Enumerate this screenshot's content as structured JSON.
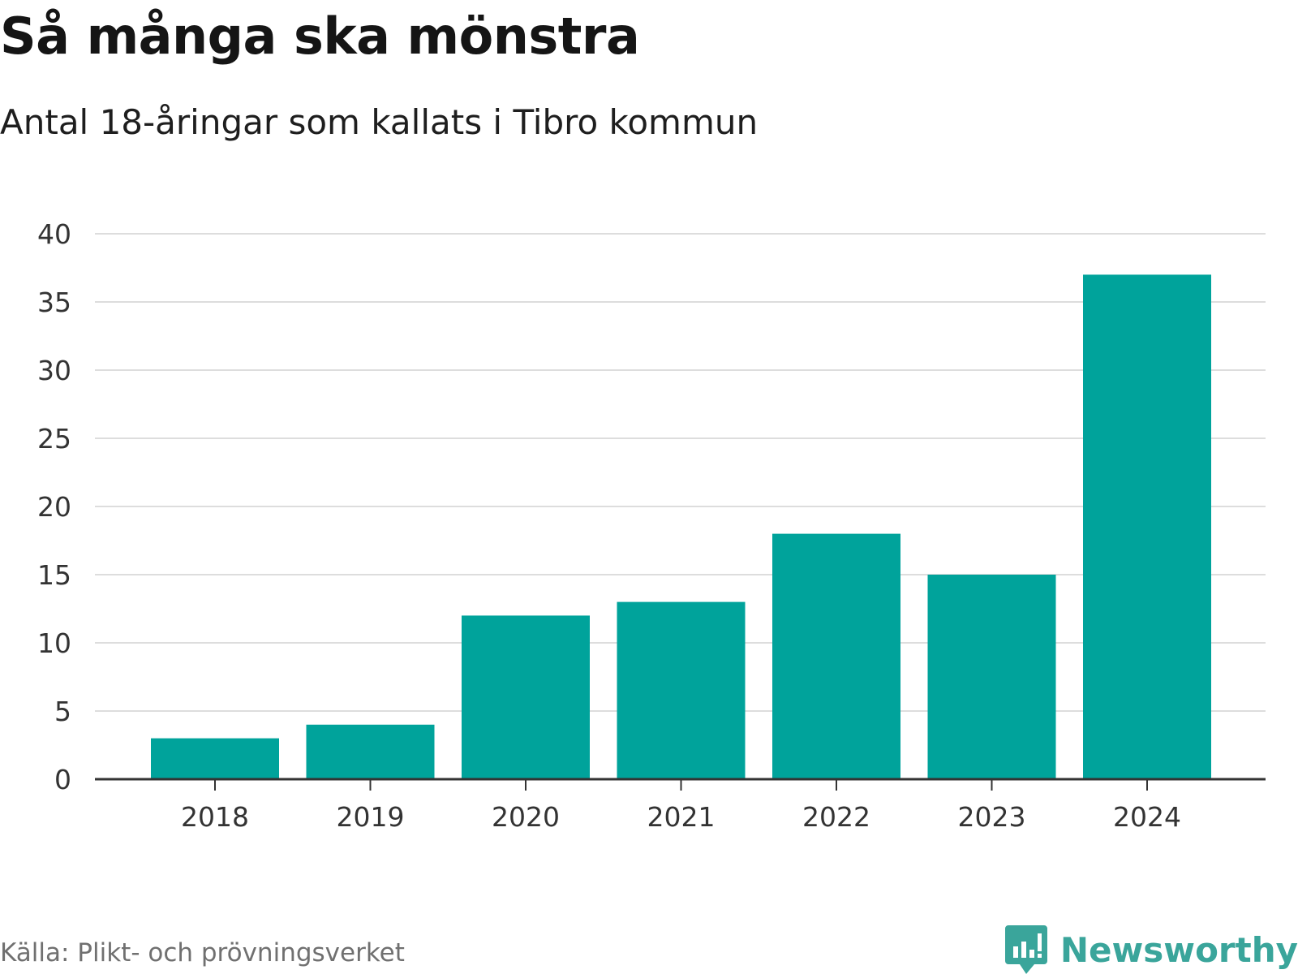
{
  "title": "Så många ska mönstra",
  "subtitle": "Antal 18-åringar som kallats i Tibro kommun",
  "source": "Källa: Plikt- och prövningsverket",
  "brand": {
    "name": "Newsworthy",
    "icon": "newsworthy-chart-bubble-icon"
  },
  "colors": {
    "bar": "#00a39b",
    "grid": "#dddddd",
    "axis": "#333333",
    "brand": "#3aa59b"
  },
  "chart_data": {
    "type": "bar",
    "title": "Så många ska mönstra",
    "subtitle": "Antal 18-åringar som kallats i Tibro kommun",
    "xlabel": "",
    "ylabel": "",
    "categories": [
      "2018",
      "2019",
      "2020",
      "2021",
      "2022",
      "2023",
      "2024"
    ],
    "values": [
      3,
      4,
      12,
      13,
      18,
      15,
      37
    ],
    "ylim": [
      0,
      40
    ],
    "yticks": [
      0,
      5,
      10,
      15,
      20,
      25,
      30,
      35,
      40
    ],
    "grid": true,
    "legend": "none"
  }
}
